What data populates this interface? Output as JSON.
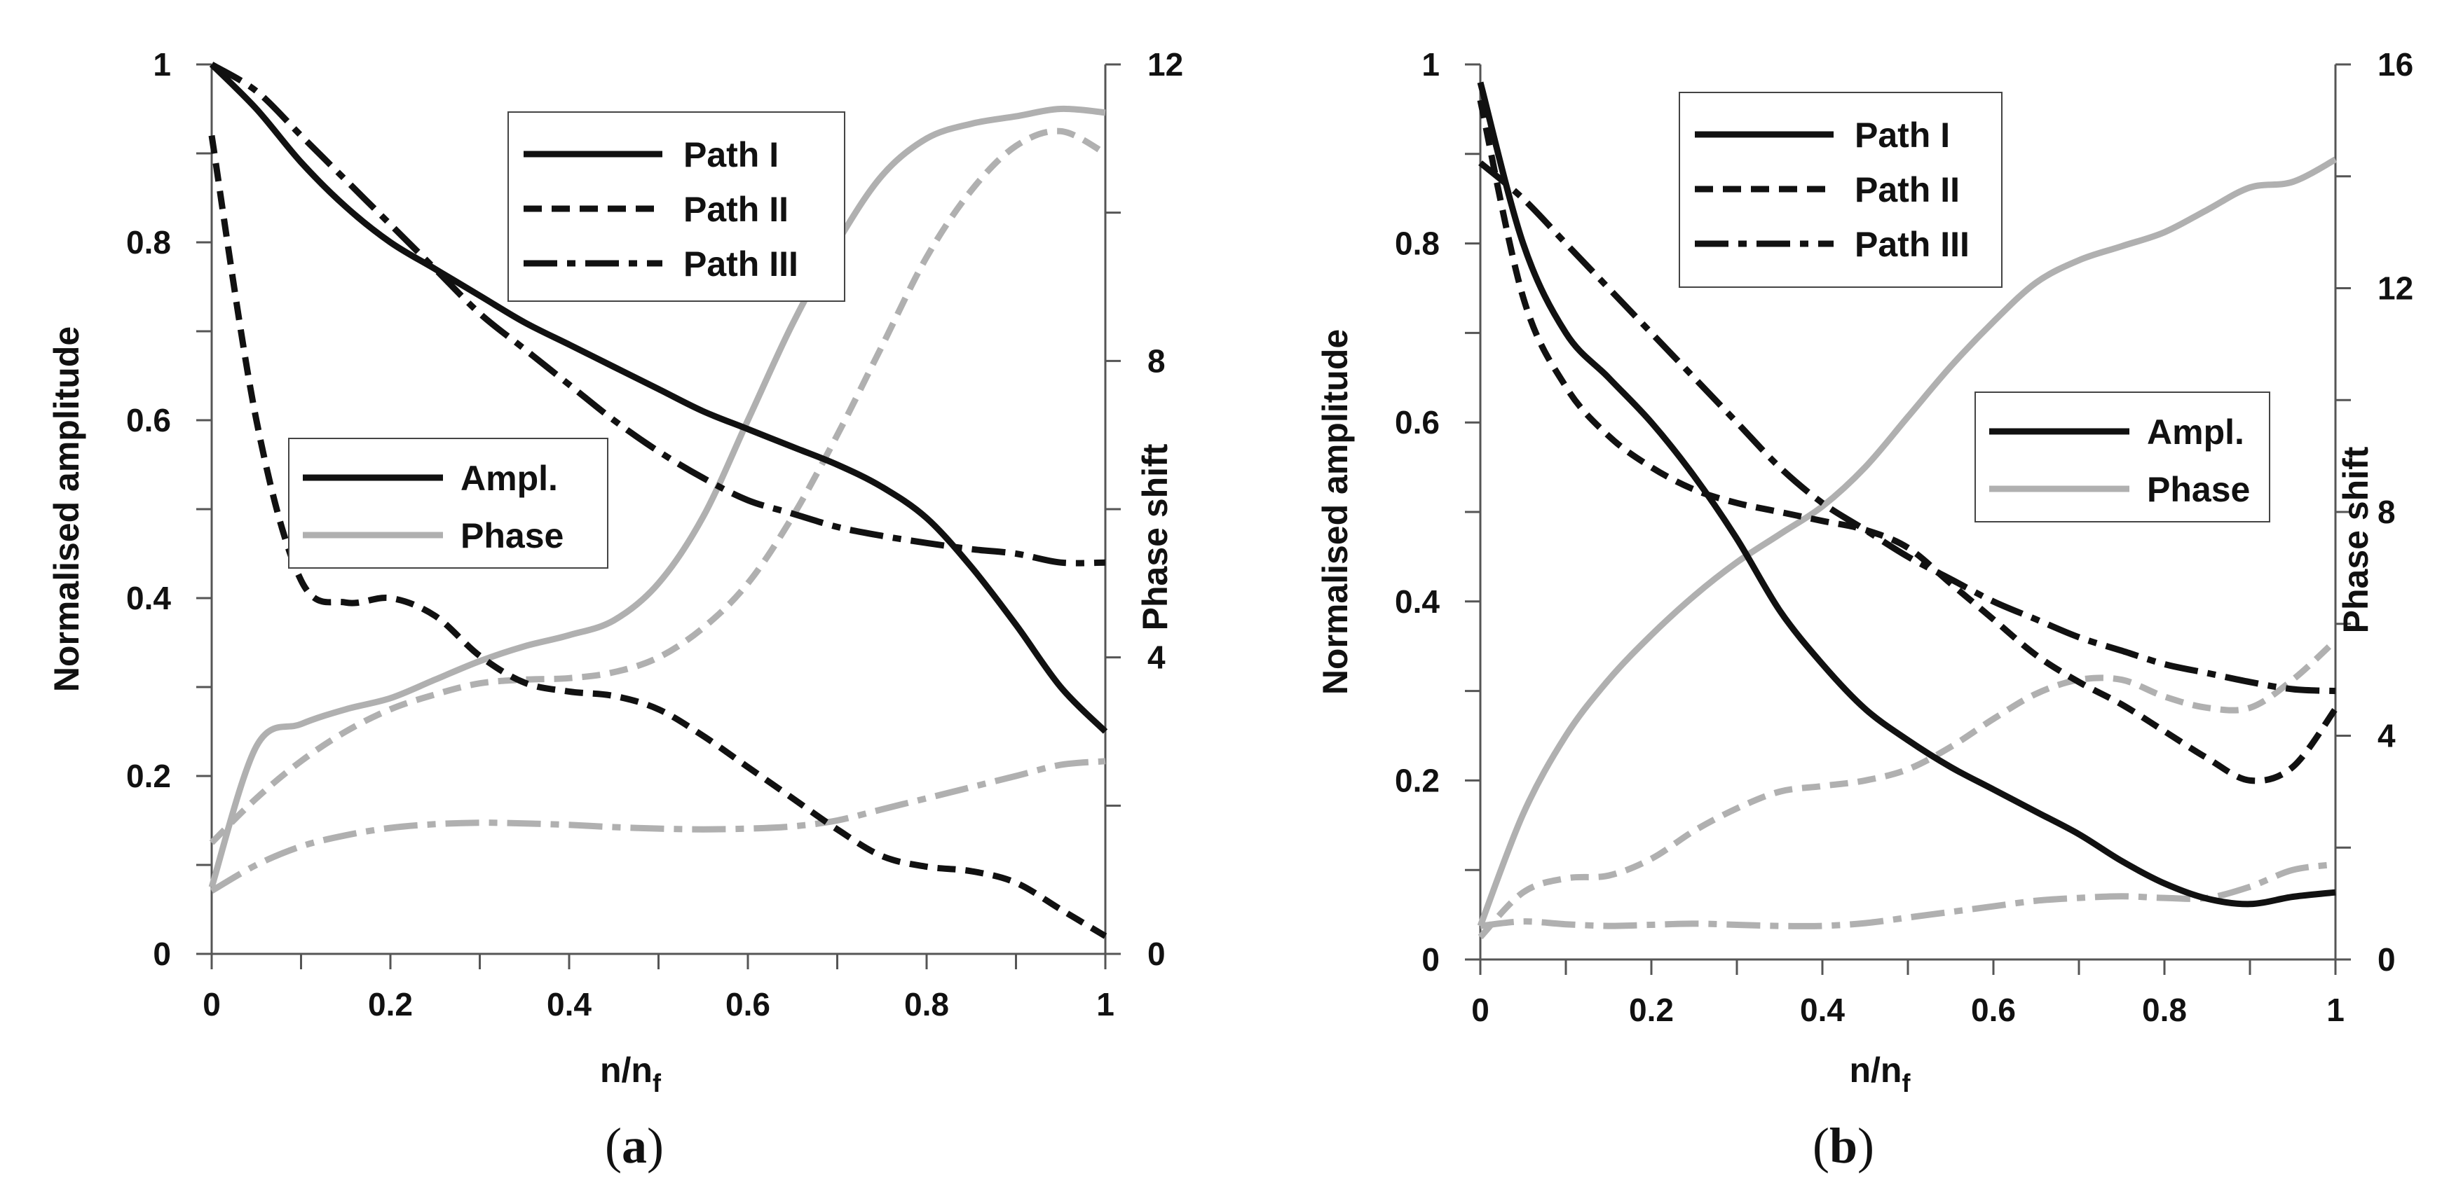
{
  "chart_data": [
    {
      "type": "line",
      "panel_label": "a",
      "xlabel": "n/n",
      "xlabel_subscript": "f",
      "ylabel": "Normalised amplitude",
      "y2label": "Phase shift",
      "xlim": [
        0,
        1
      ],
      "ylim": [
        0,
        1
      ],
      "y2lim": [
        0,
        12
      ],
      "x_ticks": [
        "0",
        "0.2",
        "0.4",
        "0.6",
        "0.8",
        "1"
      ],
      "y_ticks": [
        "0",
        "0.2",
        "0.4",
        "0.6",
        "0.8",
        "1"
      ],
      "y2_ticks": [
        "0",
        "4",
        "8",
        "12"
      ],
      "path_legend": [
        "Path I",
        "Path II",
        "Path III"
      ],
      "type_legend": [
        "Ampl.",
        "Phase"
      ],
      "colors": {
        "amplitude": "#111111",
        "phase": "#b0b0b0"
      },
      "x": [
        0,
        0.05,
        0.1,
        0.15,
        0.2,
        0.25,
        0.3,
        0.35,
        0.4,
        0.45,
        0.5,
        0.55,
        0.6,
        0.65,
        0.7,
        0.75,
        0.8,
        0.85,
        0.9,
        0.95,
        1
      ],
      "series": [
        {
          "name": "Path I",
          "kind": "amplitude",
          "axis": "left",
          "dash": "solid",
          "values": [
            1.0,
            0.95,
            0.89,
            0.84,
            0.8,
            0.77,
            0.74,
            0.71,
            0.685,
            0.66,
            0.635,
            0.61,
            0.59,
            0.57,
            0.55,
            0.525,
            0.49,
            0.435,
            0.37,
            0.3,
            0.25
          ]
        },
        {
          "name": "Path II",
          "kind": "amplitude",
          "axis": "left",
          "dash": "dash",
          "values": [
            0.92,
            0.6,
            0.42,
            0.395,
            0.4,
            0.38,
            0.335,
            0.305,
            0.295,
            0.29,
            0.275,
            0.245,
            0.21,
            0.175,
            0.14,
            0.11,
            0.098,
            0.093,
            0.08,
            0.05,
            0.02
          ]
        },
        {
          "name": "Path III",
          "kind": "amplitude",
          "axis": "left",
          "dash": "dashdot",
          "values": [
            1.0,
            0.97,
            0.92,
            0.87,
            0.82,
            0.77,
            0.72,
            0.68,
            0.64,
            0.6,
            0.565,
            0.535,
            0.51,
            0.495,
            0.48,
            0.47,
            0.462,
            0.455,
            0.45,
            0.44,
            0.44
          ]
        },
        {
          "name": "Path I",
          "kind": "phase",
          "axis": "right",
          "dash": "solid",
          "values": [
            0.9,
            2.8,
            3.1,
            3.3,
            3.45,
            3.7,
            3.95,
            4.15,
            4.3,
            4.5,
            5.0,
            5.9,
            7.2,
            8.5,
            9.6,
            10.5,
            11.0,
            11.2,
            11.3,
            11.4,
            11.35
          ]
        },
        {
          "name": "Path II",
          "kind": "phase",
          "axis": "right",
          "dash": "dash",
          "values": [
            1.5,
            2.1,
            2.6,
            3.0,
            3.3,
            3.5,
            3.65,
            3.7,
            3.72,
            3.8,
            4.0,
            4.4,
            5.0,
            5.9,
            7.0,
            8.2,
            9.4,
            10.3,
            10.9,
            11.1,
            10.8
          ]
        },
        {
          "name": "Path III",
          "kind": "phase",
          "axis": "right",
          "dash": "dashdot",
          "values": [
            0.85,
            1.2,
            1.45,
            1.6,
            1.7,
            1.75,
            1.77,
            1.76,
            1.74,
            1.71,
            1.69,
            1.68,
            1.69,
            1.72,
            1.8,
            1.95,
            2.1,
            2.25,
            2.4,
            2.55,
            2.6
          ]
        }
      ]
    },
    {
      "type": "line",
      "panel_label": "b",
      "xlabel": "n/n",
      "xlabel_subscript": "f",
      "ylabel": "Normalised amplitude",
      "y2label": "Phase shift",
      "xlim": [
        0,
        1
      ],
      "ylim": [
        0,
        1
      ],
      "y2lim": [
        0,
        16
      ],
      "x_ticks": [
        "0",
        "0.2",
        "0.4",
        "0.6",
        "0.8",
        "1"
      ],
      "y_ticks": [
        "0",
        "0.2",
        "0.4",
        "0.6",
        "0.8",
        "1"
      ],
      "y2_ticks": [
        "0",
        "4",
        "8",
        "12",
        "16"
      ],
      "path_legend": [
        "Path I",
        "Path II",
        "Path III"
      ],
      "type_legend": [
        "Ampl.",
        "Phase"
      ],
      "colors": {
        "amplitude": "#111111",
        "phase": "#b0b0b0"
      },
      "x": [
        0,
        0.05,
        0.1,
        0.15,
        0.2,
        0.25,
        0.3,
        0.35,
        0.4,
        0.45,
        0.5,
        0.55,
        0.6,
        0.65,
        0.7,
        0.75,
        0.8,
        0.85,
        0.9,
        0.95,
        1
      ],
      "series": [
        {
          "name": "Path I",
          "kind": "amplitude",
          "axis": "left",
          "dash": "solid",
          "values": [
            0.98,
            0.8,
            0.7,
            0.65,
            0.6,
            0.54,
            0.47,
            0.39,
            0.33,
            0.28,
            0.245,
            0.215,
            0.19,
            0.165,
            0.14,
            0.11,
            0.085,
            0.068,
            0.062,
            0.07,
            0.075
          ]
        },
        {
          "name": "Path II",
          "kind": "amplitude",
          "axis": "left",
          "dash": "dash",
          "values": [
            0.96,
            0.74,
            0.64,
            0.585,
            0.55,
            0.525,
            0.51,
            0.5,
            0.49,
            0.48,
            0.46,
            0.42,
            0.38,
            0.34,
            0.31,
            0.285,
            0.255,
            0.225,
            0.2,
            0.215,
            0.28
          ]
        },
        {
          "name": "Path III",
          "kind": "amplitude",
          "axis": "left",
          "dash": "dashdot",
          "values": [
            0.89,
            0.85,
            0.8,
            0.75,
            0.7,
            0.65,
            0.6,
            0.55,
            0.51,
            0.48,
            0.45,
            0.425,
            0.4,
            0.38,
            0.36,
            0.345,
            0.33,
            0.32,
            0.31,
            0.302,
            0.3
          ]
        },
        {
          "name": "Path I",
          "kind": "phase",
          "axis": "right",
          "dash": "solid",
          "values": [
            0.6,
            2.6,
            4.0,
            5.0,
            5.8,
            6.5,
            7.1,
            7.6,
            8.1,
            8.8,
            9.7,
            10.6,
            11.4,
            12.1,
            12.5,
            12.75,
            13.0,
            13.4,
            13.8,
            13.9,
            14.3
          ]
        },
        {
          "name": "Path II",
          "kind": "phase",
          "axis": "right",
          "dash": "dash",
          "values": [
            0.4,
            1.2,
            1.45,
            1.5,
            1.8,
            2.3,
            2.7,
            3.0,
            3.1,
            3.2,
            3.4,
            3.8,
            4.3,
            4.75,
            5.0,
            5.0,
            4.7,
            4.5,
            4.5,
            5.0,
            5.7
          ]
        },
        {
          "name": "Path III",
          "kind": "phase",
          "axis": "right",
          "dash": "dashdot",
          "values": [
            0.6,
            0.68,
            0.63,
            0.6,
            0.62,
            0.64,
            0.62,
            0.6,
            0.6,
            0.65,
            0.75,
            0.85,
            0.95,
            1.05,
            1.1,
            1.13,
            1.1,
            1.1,
            1.3,
            1.6,
            1.7
          ]
        }
      ]
    }
  ]
}
